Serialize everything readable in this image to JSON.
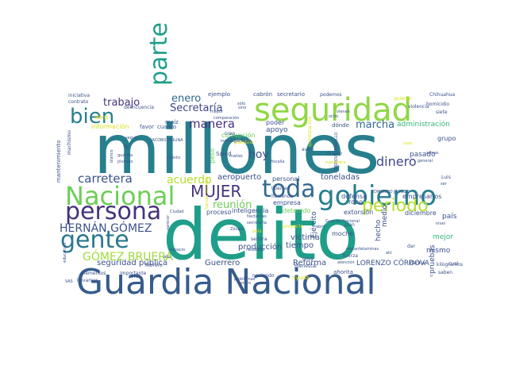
{
  "word_cloud": {
    "palette": {
      "purple": "#46327e",
      "indigo": "#3b528b",
      "blue": "#365c8d",
      "teal": "#277f8e",
      "aqua": "#1f9e89",
      "green": "#35b779",
      "lime": "#6ece58",
      "yellow": "#b5de2b",
      "lightyellow": "#d8e219",
      "darkpurple": "#440154"
    },
    "words": [
      {
        "text": "millones",
        "color": "#277f8e"
      },
      {
        "text": "delito",
        "color": "#1f9e89"
      },
      {
        "text": "Guardia Nacional",
        "color": "#365c8d"
      },
      {
        "text": "seguridad",
        "color": "#8fd744"
      },
      {
        "text": "gobierno",
        "color": "#277f8e"
      },
      {
        "text": "Nacional",
        "color": "#6ece58"
      },
      {
        "text": "toda",
        "color": "#31688e"
      },
      {
        "text": "persona",
        "color": "#46327e"
      },
      {
        "text": "parte",
        "color": "#1f9e89"
      },
      {
        "text": "periodo",
        "color": "#b5de2b"
      },
      {
        "text": "gente",
        "color": "#2a788e"
      },
      {
        "text": "bien",
        "color": "#277f8e"
      },
      {
        "text": "MUJER",
        "color": "#46327e"
      },
      {
        "text": "HERNÁN GÓMEZ",
        "color": "#3b528b"
      },
      {
        "text": "GÓMEZ BRUERA",
        "color": "#a0da39"
      },
      {
        "text": "carretera",
        "color": "#3b528b"
      },
      {
        "text": "manera",
        "color": "#46327e"
      },
      {
        "text": "dinero",
        "color": "#3e4989"
      },
      {
        "text": "marcha",
        "color": "#31688e"
      },
      {
        "text": "Secretaría",
        "color": "#404688"
      },
      {
        "text": "hoy",
        "color": "#3b528b"
      },
      {
        "text": "acuerdo",
        "color": "#b5de2b"
      },
      {
        "text": "reunión",
        "color": "#6ece58"
      },
      {
        "text": "trabajo",
        "color": "#46327e"
      },
      {
        "text": "enero",
        "color": "#31688e"
      },
      {
        "text": "aeropuerto",
        "color": "#3b528b"
      },
      {
        "text": "toneladas",
        "color": "#3b528b"
      },
      {
        "text": "producción",
        "color": "#3b528b"
      },
      {
        "text": "víctima",
        "color": "#3b528b"
      },
      {
        "text": "tiempo",
        "color": "#3b528b"
      },
      {
        "text": "Reforma",
        "color": "#3b528b"
      },
      {
        "text": "Guerrero",
        "color": "#3b528b"
      },
      {
        "text": "seguridad pública",
        "color": "#3b528b"
      },
      {
        "text": "LORENZO CÓRDOVA",
        "color": "#3b528b"
      },
      {
        "text": "administración",
        "color": "#35b779"
      },
      {
        "text": "pasado",
        "color": "#3b528b"
      },
      {
        "text": "mismo",
        "color": "#3b528b"
      },
      {
        "text": "Ejército",
        "color": "#3b528b"
      },
      {
        "text": "medio",
        "color": "#3b528b"
      },
      {
        "text": "país",
        "color": "#3b528b"
      },
      {
        "text": "mejor",
        "color": "#35b779"
      },
      {
        "text": "hecho",
        "color": "#3b528b"
      },
      {
        "text": "pruebas",
        "color": "#3b528b"
      },
      {
        "text": "grupo",
        "color": "#3b528b"
      },
      {
        "text": "apoyo",
        "color": "#3b528b"
      },
      {
        "text": "información",
        "color": "#d8e219"
      },
      {
        "text": "poder",
        "color": "#3b528b"
      },
      {
        "text": "corrupción",
        "color": "#6ece58"
      },
      {
        "text": "empresarios",
        "color": "#3b528b"
      },
      {
        "text": "empresa",
        "color": "#3b528b"
      },
      {
        "text": "detenido",
        "color": "#6ece58"
      },
      {
        "text": "proceso",
        "color": "#3b528b"
      },
      {
        "text": "inteligencia",
        "color": "#3b528b"
      },
      {
        "text": "diciembre",
        "color": "#3b528b"
      },
      {
        "text": "extorsión",
        "color": "#3b528b"
      },
      {
        "text": "moche",
        "color": "#3b528b"
      },
      {
        "text": "personal",
        "color": "#3b528b"
      },
      {
        "text": "robo",
        "color": "#3b528b"
      },
      {
        "text": "defensa",
        "color": "#3b528b"
      },
      {
        "text": "ejemplo",
        "color": "#3b528b"
      },
      {
        "text": "cabrón",
        "color": "#3b528b"
      },
      {
        "text": "secretario",
        "color": "#3b528b"
      },
      {
        "text": "podemos",
        "color": "#3b528b"
      },
      {
        "text": "maíz",
        "color": "#3b528b"
      },
      {
        "text": "Salud",
        "color": "#3b528b"
      },
      {
        "text": "peso",
        "color": "#6ece58"
      },
      {
        "text": "cuanto",
        "color": "#3b528b"
      },
      {
        "text": "favor",
        "color": "#3b528b"
      },
      {
        "text": "años",
        "color": "#d8e219"
      },
      {
        "text": "pueblo",
        "color": "#d8e219"
      },
      {
        "text": "dónde",
        "color": "#3b528b"
      },
      {
        "text": "mantenimiento",
        "color": "#3b528b"
      },
      {
        "text": "delincuencia",
        "color": "#3b528b"
      },
      {
        "text": "contrato",
        "color": "#3b528b"
      },
      {
        "text": "iniciativa",
        "color": "#3b528b"
      },
      {
        "text": "Chihuahua",
        "color": "#3b528b"
      },
      {
        "text": "homicidio",
        "color": "#3b528b"
      },
      {
        "text": "quieren",
        "color": "#d8e219"
      },
      {
        "text": "machismo",
        "color": "#3b528b"
      },
      {
        "text": "libertad",
        "color": "#3b528b"
      },
      {
        "text": "hacienda",
        "color": "#3b528b"
      },
      {
        "text": "señora",
        "color": "#3b528b"
      },
      {
        "text": "seis",
        "color": "#d8e219"
      },
      {
        "text": "proyecto",
        "color": "#d8e219"
      },
      {
        "text": "Bienestar",
        "color": "#3b528b"
      },
      {
        "text": "ahorita",
        "color": "#3b528b"
      },
      {
        "text": "naciendo",
        "color": "#3b528b"
      },
      {
        "text": "ayuda",
        "color": "#d8e219"
      },
      {
        "text": "cuatro",
        "color": "#3b528b"
      },
      {
        "text": "aviso",
        "color": "#3b528b"
      },
      {
        "text": "saben",
        "color": "#3b528b"
      },
      {
        "text": "kilogramos",
        "color": "#3b528b"
      },
      {
        "text": "elementos",
        "color": "#3b528b"
      },
      {
        "text": "importante",
        "color": "#3b528b"
      },
      {
        "text": "febrero",
        "color": "#3b528b"
      },
      {
        "text": "llevamos",
        "color": "#3b528b"
      },
      {
        "text": "vida",
        "color": "#3b528b"
      },
      {
        "text": "centro",
        "color": "#3b528b"
      },
      {
        "text": "JACOBO MOLINA",
        "color": "#3b528b"
      },
      {
        "text": "Ciudad",
        "color": "#3b528b"
      },
      {
        "text": "Zócalo",
        "color": "#3b528b"
      },
      {
        "text": "plan",
        "color": "#3b528b"
      },
      {
        "text": "cosa",
        "color": "#3b528b"
      },
      {
        "text": "fuerza",
        "color": "#3b528b"
      },
      {
        "text": "Marina",
        "color": "#3b528b"
      },
      {
        "text": "dar",
        "color": "#3b528b"
      },
      {
        "text": "cual",
        "color": "#3b528b"
      },
      {
        "text": "siete",
        "color": "#3b528b"
      },
      {
        "text": "violencia",
        "color": "#3b528b"
      },
      {
        "text": "creo",
        "color": "#3b528b"
      },
      {
        "text": "armas",
        "color": "#3b528b"
      },
      {
        "text": "caso",
        "color": "#d8e219"
      },
      {
        "text": "nivel",
        "color": "#3b528b"
      },
      {
        "text": "general",
        "color": "#3b528b"
      },
      {
        "text": "ocho",
        "color": "#3b528b"
      },
      {
        "text": "vienen",
        "color": "#3b528b"
      },
      {
        "text": "fiscalía",
        "color": "#3b528b"
      },
      {
        "text": "atención",
        "color": "#3b528b"
      },
      {
        "text": "metanfetaminas",
        "color": "#3b528b"
      },
      {
        "text": "hectáreas",
        "color": "#3b528b"
      },
      {
        "text": "resultado",
        "color": "#3b528b"
      },
      {
        "text": "secretaria",
        "color": "#3b528b"
      },
      {
        "text": "mañes",
        "color": "#3b528b"
      },
      {
        "text": "investigaciones",
        "color": "#3b528b"
      },
      {
        "text": "comparación",
        "color": "#3b528b"
      },
      {
        "text": "mayor",
        "color": "#3b528b"
      },
      {
        "text": "seguir",
        "color": "#3b528b"
      },
      {
        "text": "N",
        "color": "#3b528b"
      },
      {
        "text": "guardia",
        "color": "#3b528b"
      },
      {
        "text": "jóvenes",
        "color": "#3b528b"
      },
      {
        "text": "blanco",
        "color": "#3b528b"
      },
      {
        "text": "educación",
        "color": "#3b528b"
      },
      {
        "text": "VAS",
        "color": "#3b528b"
      },
      {
        "text": "sólo",
        "color": "#3b528b"
      },
      {
        "text": "Luis",
        "color": "#3b528b"
      },
      {
        "text": "ir",
        "color": "#3b528b"
      },
      {
        "text": "espacio",
        "color": "#3b528b"
      },
      {
        "text": "alto",
        "color": "#3b528b"
      },
      {
        "text": "problemas",
        "color": "#3b528b"
      },
      {
        "text": "sino",
        "color": "#3b528b"
      },
      {
        "text": "parecer",
        "color": "#3b528b"
      },
      {
        "text": "Guardia Nacional",
        "color": "#3b528b"
      },
      {
        "text": "abril",
        "color": "#3b528b"
      },
      {
        "text": "ahí",
        "color": "#3b528b"
      },
      {
        "text": "EDMUNDO JACOBO",
        "color": "#3b528b"
      },
      {
        "text": "quintana roo",
        "color": "#d8e219"
      },
      {
        "text": "CORDOVA VIANELLO",
        "color": "#3b528b"
      },
      {
        "text": "mañanera",
        "color": "#d8e219"
      },
      {
        "text": "ser",
        "color": "#3b528b"
      },
      {
        "text": "cuánto",
        "color": "#3b528b"
      },
      {
        "text": "fuerzas armadas",
        "color": "#d8e219"
      }
    ]
  }
}
